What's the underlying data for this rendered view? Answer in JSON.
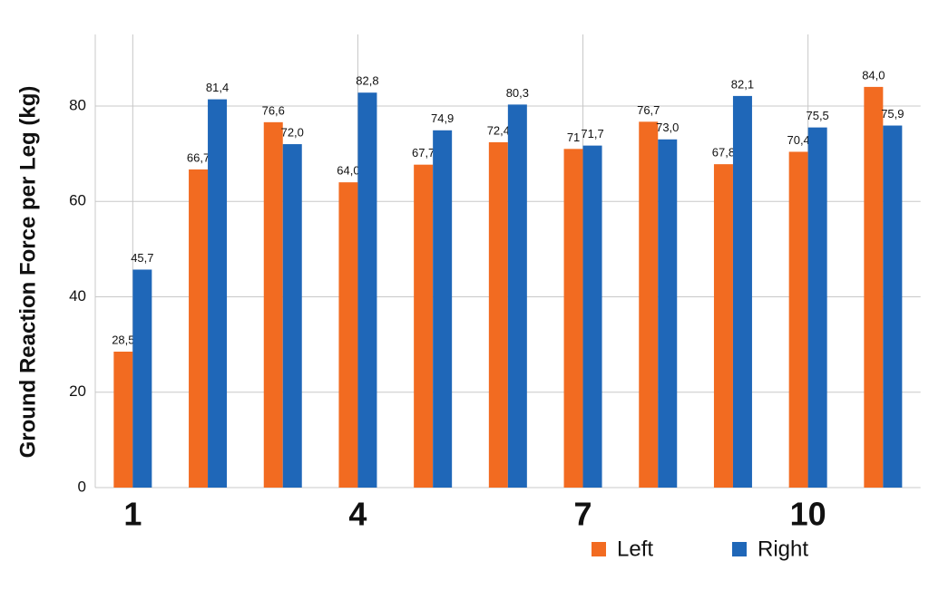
{
  "chart_data": {
    "type": "bar",
    "y_label": "Ground Reaction Force per Leg (kg)",
    "categories": [
      "1",
      null,
      null,
      "4",
      null,
      null,
      "7",
      null,
      null,
      "10",
      null
    ],
    "series": [
      {
        "name": "Left",
        "color": "#f26b21",
        "values": [
          28.5,
          66.7,
          76.6,
          64.0,
          67.7,
          72.4,
          71,
          76.7,
          67.8,
          70.4,
          84.0
        ],
        "value_labels": [
          "28,5",
          "66,7",
          "76,6",
          "64,0",
          "67,7",
          "72,4",
          "71",
          "76,7",
          "67,8",
          "70,4",
          "84,0"
        ]
      },
      {
        "name": "Right",
        "color": "#1f67b8",
        "values": [
          45.7,
          81.4,
          72.0,
          82.8,
          74.9,
          80.3,
          71.7,
          73.0,
          82.1,
          75.5,
          75.9
        ],
        "value_labels": [
          "45,7",
          "81,4",
          "72,0",
          "82,8",
          "74,9",
          "80,3",
          "71,7",
          "73,0",
          "82,1",
          "75,5",
          "75,9"
        ]
      }
    ],
    "ylim": [
      0,
      95
    ],
    "yticks": [
      0,
      20,
      40,
      60,
      80
    ],
    "grid": true
  }
}
